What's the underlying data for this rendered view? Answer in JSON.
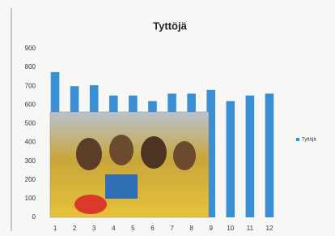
{
  "chart_data": {
    "type": "bar",
    "title": "Tyttöjä",
    "categories": [
      "1",
      "2",
      "3",
      "4",
      "5",
      "6",
      "7",
      "8",
      "9",
      "10",
      "11",
      "12"
    ],
    "series": [
      {
        "name": "Tyttöjä",
        "color": "#3a8fd4",
        "values": [
          775,
          700,
          705,
          650,
          650,
          620,
          660,
          660,
          680,
          620,
          650,
          660
        ]
      }
    ],
    "ylim": [
      0,
      900
    ],
    "yticks": [
      0,
      100,
      200,
      300,
      400,
      500,
      600,
      700,
      800,
      900
    ],
    "grid": false,
    "legend": "right"
  }
}
